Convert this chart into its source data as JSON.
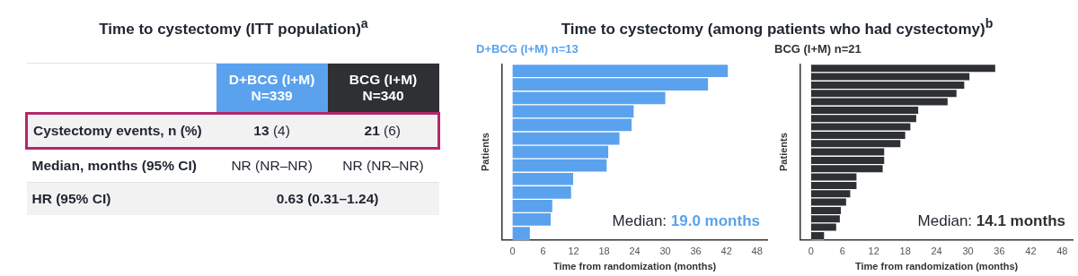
{
  "chart_data": [
    {
      "type": "other",
      "title": "Time to cystectomy (ITT population)$^{a}$",
      "annotations": [
        "D+BCG (I+M)\nN=339",
        "BCG (I+M)\nN=340",
        "Cystectomy events, n (%)",
        "13 (4)",
        "21 (6)",
        "Median, months (95% CI)",
        "NR (NR–NR)",
        "NR (NR–NR)",
        "HR (95% CI)",
        "0.63 (0.31–1.24)"
      ]
    },
    {
      "type": "bar",
      "orientation": "horizontal",
      "title": "Time to cystectomy (among patients who had cystectomy)$^{b}$",
      "subtitle": "D+BCG (I+M) n=13",
      "xlabel": "Time from randomization (months)",
      "ylabel": "Patients",
      "categories": [
        null,
        null,
        null,
        null,
        null,
        null,
        null,
        null,
        null,
        null,
        null,
        null,
        null
      ],
      "series": [
        {
          "color": "#5aa2ee",
          "values": [
            42.3,
            38.4,
            30.0,
            23.8,
            23.4,
            21.0,
            18.8,
            18.5,
            11.9,
            11.5,
            7.8,
            7.5,
            3.4
          ]
        }
      ],
      "xlim": [
        -2,
        50
      ],
      "xticks": [
        0,
        6,
        12,
        18,
        24,
        30,
        36,
        42,
        48
      ],
      "tick_labels": "x",
      "grid": false,
      "legend": false,
      "annotations": [
        "Median: 19.0 months"
      ]
    },
    {
      "type": "bar",
      "orientation": "horizontal",
      "subtitle": "BCG (I+M) n=21",
      "xlabel": "Time from randomization (months)",
      "ylabel": "Patients",
      "categories": [
        null,
        null,
        null,
        null,
        null,
        null,
        null,
        null,
        null,
        null,
        null,
        null,
        null,
        null,
        null,
        null,
        null,
        null,
        null,
        null,
        null
      ],
      "series": [
        {
          "color": "#2e3033",
          "values": [
            35.2,
            30.3,
            29.3,
            27.8,
            26.1,
            20.5,
            20.1,
            19.0,
            18.0,
            17.1,
            14.0,
            14.0,
            13.7,
            8.7,
            8.7,
            7.5,
            6.7,
            5.7,
            5.5,
            4.8,
            2.5
          ]
        }
      ],
      "xlim": [
        -2,
        50
      ],
      "xticks": [
        0,
        6,
        12,
        18,
        24,
        30,
        36,
        42,
        48
      ],
      "tick_labels": "x",
      "grid": false,
      "legend": false,
      "annotations": [
        "Median: 14.1 months"
      ]
    }
  ]
}
